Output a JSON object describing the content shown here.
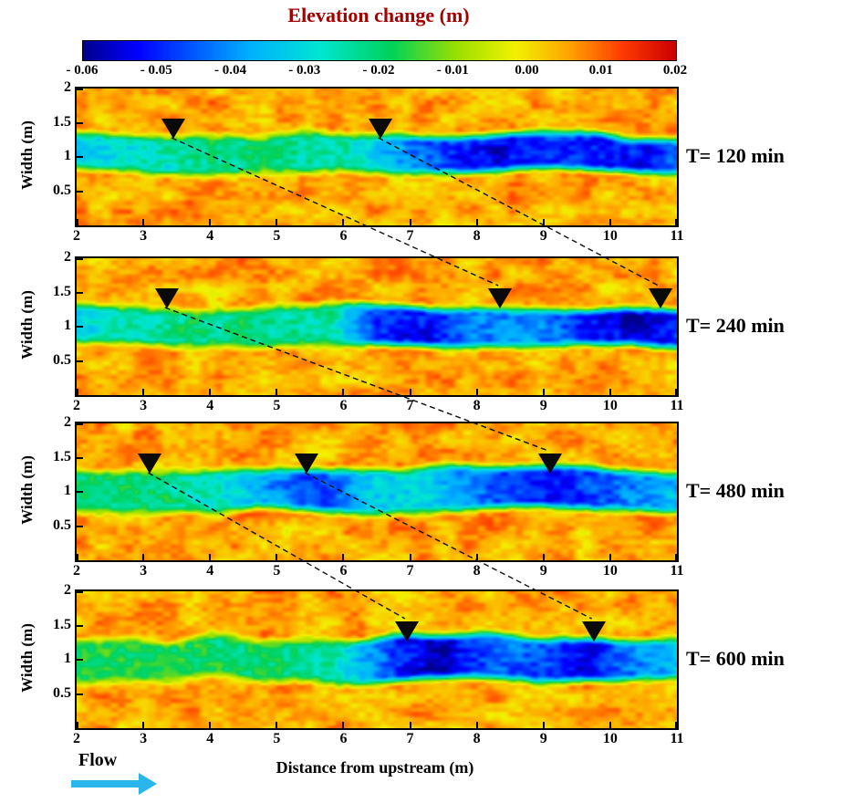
{
  "chart_data": {
    "type": "heatmap",
    "colorbar": {
      "title": "Elevation change (m)",
      "title_color": "#a30000",
      "min": -0.06,
      "max": 0.02,
      "tick_labels": [
        "- 0.06",
        "- 0.05",
        "- 0.04",
        "- 0.03",
        "- 0.02",
        "- 0.01",
        "0.00",
        "0.01",
        "0.02"
      ],
      "colormap": [
        [
          0.0,
          "#00008f"
        ],
        [
          0.09,
          "#0000ff"
        ],
        [
          0.28,
          "#00b0ff"
        ],
        [
          0.4,
          "#00e6d2"
        ],
        [
          0.52,
          "#00d25a"
        ],
        [
          0.63,
          "#9be000"
        ],
        [
          0.73,
          "#f2f200"
        ],
        [
          0.82,
          "#ffa500"
        ],
        [
          0.91,
          "#ff3c00"
        ],
        [
          1.0,
          "#cc0000"
        ]
      ]
    },
    "xlabel": "Distance from upstream (m)",
    "ylabel": "Width (m)",
    "flow_label": "Flow",
    "flow_arrow_color": "#29b6ea",
    "x_range": [
      2,
      11
    ],
    "x_ticks": [
      2,
      3,
      4,
      5,
      6,
      7,
      8,
      9,
      10,
      11
    ],
    "y_range": [
      0,
      2
    ],
    "y_ticks": [
      2,
      1.5,
      1,
      0.5
    ],
    "panels": [
      {
        "label": "T= 120 min",
        "seed": 11,
        "band": {
          "center": 1.06,
          "halfwidth": 0.27
        },
        "profile": [
          [
            2,
            -0.034
          ],
          [
            2.8,
            -0.028
          ],
          [
            4,
            -0.022
          ],
          [
            5.2,
            -0.021
          ],
          [
            6,
            -0.026
          ],
          [
            6.8,
            -0.038
          ],
          [
            7.6,
            -0.05
          ],
          [
            8.4,
            -0.053
          ],
          [
            9.2,
            -0.047
          ],
          [
            10,
            -0.053
          ],
          [
            10.6,
            -0.05
          ],
          [
            11,
            -0.042
          ]
        ],
        "markers_x": [
          3.45,
          6.55
        ]
      },
      {
        "label": "T= 240 min",
        "seed": 23,
        "band": {
          "center": 1.0,
          "halfwidth": 0.27
        },
        "profile": [
          [
            2,
            -0.032
          ],
          [
            3,
            -0.024
          ],
          [
            4.5,
            -0.021
          ],
          [
            5.8,
            -0.024
          ],
          [
            6.5,
            -0.048
          ],
          [
            7.2,
            -0.053
          ],
          [
            7.9,
            -0.042
          ],
          [
            8.8,
            -0.038
          ],
          [
            9.6,
            -0.05
          ],
          [
            10.4,
            -0.056
          ],
          [
            11,
            -0.05
          ]
        ],
        "markers_x": [
          3.35,
          8.35,
          10.75
        ]
      },
      {
        "label": "T= 480 min",
        "seed": 37,
        "band": {
          "center": 1.02,
          "halfwidth": 0.3
        },
        "profile": [
          [
            2,
            -0.02
          ],
          [
            3,
            -0.021
          ],
          [
            4,
            -0.026
          ],
          [
            5,
            -0.04
          ],
          [
            5.6,
            -0.047
          ],
          [
            6.3,
            -0.034
          ],
          [
            7.2,
            -0.03
          ],
          [
            8,
            -0.042
          ],
          [
            8.8,
            -0.051
          ],
          [
            9.6,
            -0.048
          ],
          [
            10.4,
            -0.04
          ],
          [
            11,
            -0.036
          ]
        ],
        "markers_x": [
          3.1,
          5.45,
          9.1
        ]
      },
      {
        "label": "T= 600 min",
        "seed": 51,
        "band": {
          "center": 1.0,
          "halfwidth": 0.3
        },
        "profile": [
          [
            2,
            -0.019
          ],
          [
            3.5,
            -0.018
          ],
          [
            5,
            -0.021
          ],
          [
            6,
            -0.027
          ],
          [
            6.8,
            -0.05
          ],
          [
            7.5,
            -0.056
          ],
          [
            8.3,
            -0.043
          ],
          [
            9,
            -0.045
          ],
          [
            9.7,
            -0.053
          ],
          [
            10.3,
            -0.042
          ],
          [
            11,
            -0.037
          ]
        ],
        "markers_x": [
          6.95,
          9.75
        ]
      }
    ],
    "dashed_lines": [
      {
        "from_panel": 0,
        "from_x": 3.45,
        "to_panel": 1,
        "to_x": 8.35
      },
      {
        "from_panel": 0,
        "from_x": 6.55,
        "to_panel": 1,
        "to_x": 10.75
      },
      {
        "from_panel": 1,
        "from_x": 3.35,
        "to_panel": 2,
        "to_x": 9.1
      },
      {
        "from_panel": 2,
        "from_x": 3.1,
        "to_panel": 3,
        "to_x": 6.95
      },
      {
        "from_panel": 2,
        "from_x": 5.45,
        "to_panel": 3,
        "to_x": 9.75
      }
    ]
  }
}
